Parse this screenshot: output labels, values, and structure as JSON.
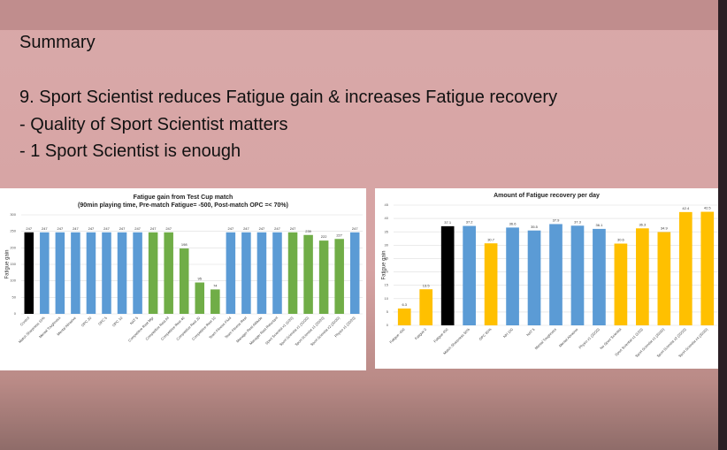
{
  "summary": {
    "heading": "Summary",
    "points": [
      "9. Sport Scientist reduces Fatigue gain & increases Fatigue recovery",
      "- Quality of Sport Scientist matters",
      "- 1 Sport Scientist is enough"
    ]
  },
  "chart_data": [
    {
      "type": "bar",
      "title": "Fatigue gain from Test Cup match",
      "subtitle": "(90min playing time, Pre-match Fatigue= -500, Post-match OPC =< 70%)",
      "y_label": "Fatigue gain",
      "categories": [
        "Control",
        "Match Sharpness 10%",
        "Mental Toughness",
        "Mental Abrasive",
        "OPC 20",
        "OPC 5",
        "OPC 10",
        "NAT 5",
        "Competitive Rest Mgr",
        "Competitive Rest All",
        "Competitive Rest 40",
        "Competitive Rest 20",
        "Competitive Rest 10",
        "Team Fitness Fluid",
        "Team Fitness Rest",
        "Manager Rest Attitude",
        "Manager Rest Reluctant",
        "Sport Scientist x1 (1/20)",
        "Sport Scientist x1 (10/20)",
        "Sport Scientist x1 (20/20)",
        "Sport Scientist x2 (20/20)",
        "Physio x1 (20/20)"
      ],
      "values": [
        247,
        247,
        247,
        247,
        247,
        247,
        247,
        247,
        247,
        247,
        198,
        95,
        74,
        247,
        247,
        247,
        247,
        247,
        239,
        222,
        227,
        247
      ],
      "colors": [
        "#000000",
        "#5b9bd5",
        "#5b9bd5",
        "#5b9bd5",
        "#5b9bd5",
        "#5b9bd5",
        "#5b9bd5",
        "#5b9bd5",
        "#70ad47",
        "#70ad47",
        "#70ad47",
        "#70ad47",
        "#70ad47",
        "#5b9bd5",
        "#5b9bd5",
        "#5b9bd5",
        "#5b9bd5",
        "#70ad47",
        "#70ad47",
        "#70ad47",
        "#70ad47",
        "#5b9bd5"
      ],
      "ylim": [
        0,
        300
      ],
      "yticks": [
        0,
        50,
        100,
        150,
        200,
        250,
        300
      ],
      "grid": true
    },
    {
      "type": "bar",
      "title": "Amount of Fatigue recovery per day",
      "y_label": "Fatigue gain",
      "categories": [
        "Fatigue -400",
        "Fatigue 0",
        "Fatigue 400",
        "Match Sharpness 50%",
        "OPC 60%",
        "NH 100",
        "NAT 5",
        "Mental Toughness",
        "Mental Abrasive",
        "Physio x1 (20/20)",
        "No Sport Scientist",
        "Sport Scientist x1 (1/20)",
        "Sport Scientist x1 (20/20)",
        "Sport Scientist x2 (20/20)",
        "Sport Scientist x4 (20/20)"
      ],
      "values": [
        6.3,
        13.5,
        37.1,
        37.2,
        30.7,
        36.6,
        35.5,
        37.9,
        37.3,
        36.1,
        30.6,
        36.3,
        34.9,
        42.4,
        42.5
      ],
      "colors": [
        "#ffc000",
        "#ffc000",
        "#000000",
        "#5b9bd5",
        "#ffc000",
        "#5b9bd5",
        "#5b9bd5",
        "#5b9bd5",
        "#5b9bd5",
        "#5b9bd5",
        "#ffc000",
        "#ffc000",
        "#ffc000",
        "#ffc000",
        "#ffc000"
      ],
      "ylim": [
        0,
        45
      ],
      "yticks": [
        0,
        5,
        10,
        15,
        20,
        25,
        30,
        35,
        40,
        45
      ],
      "grid": true
    }
  ]
}
